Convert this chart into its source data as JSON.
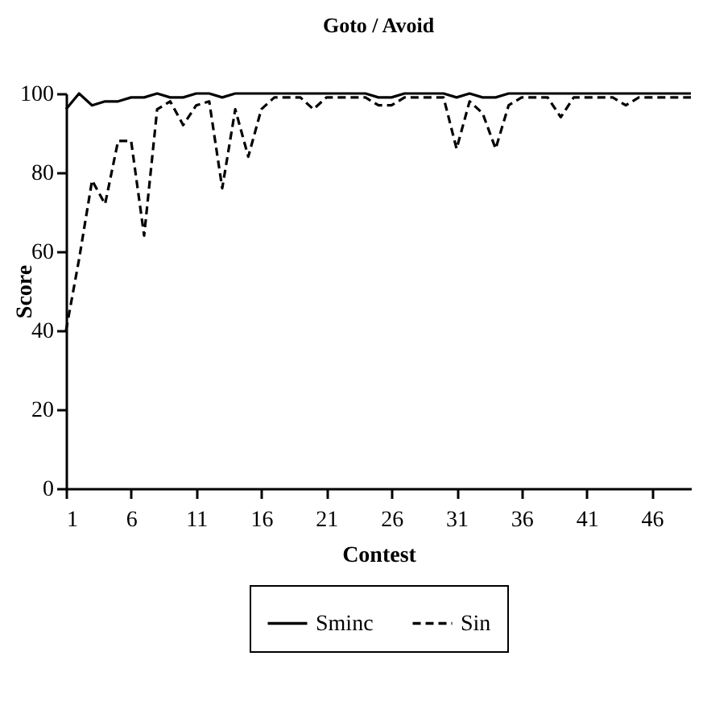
{
  "chart_data": {
    "type": "line",
    "title": "Goto / Avoid",
    "xlabel": "Contest",
    "ylabel": "Score",
    "x": [
      1,
      2,
      3,
      4,
      5,
      6,
      7,
      8,
      9,
      10,
      11,
      12,
      13,
      14,
      15,
      16,
      17,
      18,
      19,
      20,
      21,
      22,
      23,
      24,
      25,
      26,
      27,
      28,
      29,
      30,
      31,
      32,
      33,
      34,
      35,
      36,
      37,
      38,
      39,
      40,
      41,
      42,
      43,
      44,
      45,
      46,
      47,
      48,
      49
    ],
    "xlim": [
      1,
      49
    ],
    "xticks": [
      1,
      6,
      11,
      16,
      21,
      26,
      31,
      36,
      41,
      46
    ],
    "ylim": [
      0,
      100
    ],
    "yticks": [
      0,
      20,
      40,
      60,
      80,
      100
    ],
    "grid": false,
    "legend": "bottom",
    "marker": "none",
    "series": [
      {
        "name": "Sminc",
        "color": "#000000",
        "line_style": "solid",
        "values": [
          96,
          100,
          97,
          98,
          98,
          99,
          99,
          100,
          99,
          99,
          100,
          100,
          99,
          100,
          100,
          100,
          100,
          100,
          100,
          100,
          100,
          100,
          100,
          100,
          99,
          99,
          100,
          100,
          100,
          100,
          99,
          100,
          99,
          99,
          100,
          100,
          100,
          100,
          100,
          100,
          100,
          100,
          100,
          100,
          100,
          100,
          100,
          100,
          100
        ]
      },
      {
        "name": "Sin",
        "color": "#000000",
        "line_style": "dashed",
        "values": [
          40,
          58,
          78,
          72,
          88,
          88,
          64,
          96,
          98,
          92,
          97,
          98,
          76,
          96,
          84,
          96,
          99,
          99,
          99,
          96,
          99,
          99,
          99,
          99,
          97,
          97,
          99,
          99,
          99,
          99,
          86,
          98,
          95,
          86,
          97,
          99,
          99,
          99,
          94,
          99,
          99,
          99,
          99,
          97,
          99,
          99,
          99,
          99,
          99
        ]
      }
    ]
  }
}
